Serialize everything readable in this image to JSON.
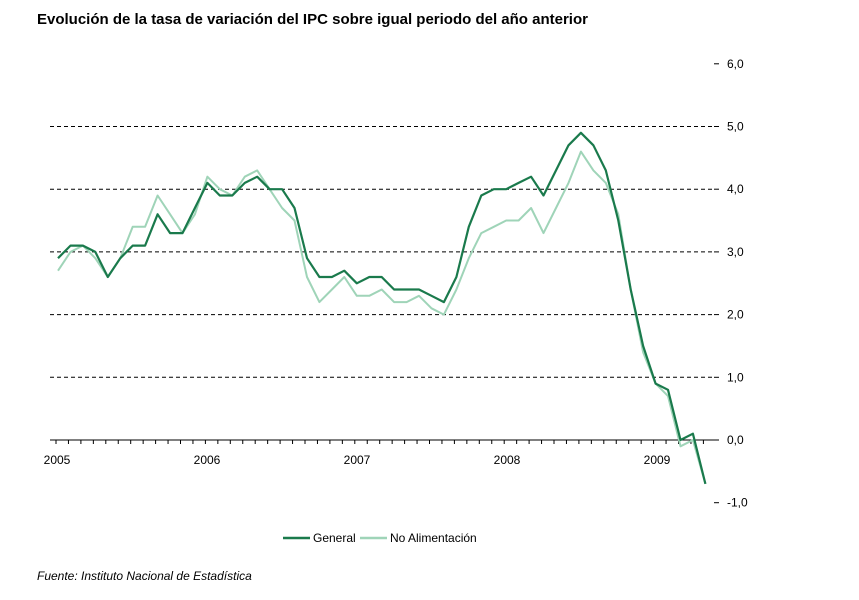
{
  "title": "Evolución de la tasa de variación del IPC sobre igual  periodo del año anterior",
  "source": "Fuente: Instituto Nacional de Estadística",
  "colors": {
    "general": "#1a7a4c",
    "no_alimentacion": "#9fd4b8",
    "grid": "#000000"
  },
  "chart_data": {
    "type": "line",
    "title": "Evolución de la tasa de variación del IPC sobre igual  periodo del año anterior",
    "xlabel": "",
    "ylabel": "",
    "ylim": [
      -1.0,
      6.0
    ],
    "y_ticks": [
      "-1,0",
      "0,0",
      "1,0",
      "2,0",
      "3,0",
      "4,0",
      "5,0",
      "6,0"
    ],
    "y_tick_values": [
      -1,
      0,
      1,
      2,
      3,
      4,
      5,
      6
    ],
    "x_ticks": [
      "2005",
      "2006",
      "2007",
      "2008",
      "2009"
    ],
    "grid": "horizontal dashed at 1,0 2,0 3,0 4,0 5,0",
    "legend_position": "bottom-center",
    "x": [
      "2005-01",
      "2005-02",
      "2005-03",
      "2005-04",
      "2005-05",
      "2005-06",
      "2005-07",
      "2005-08",
      "2005-09",
      "2005-10",
      "2005-11",
      "2005-12",
      "2006-01",
      "2006-02",
      "2006-03",
      "2006-04",
      "2006-05",
      "2006-06",
      "2006-07",
      "2006-08",
      "2006-09",
      "2006-10",
      "2006-11",
      "2006-12",
      "2007-01",
      "2007-02",
      "2007-03",
      "2007-04",
      "2007-05",
      "2007-06",
      "2007-07",
      "2007-08",
      "2007-09",
      "2007-10",
      "2007-11",
      "2007-12",
      "2008-01",
      "2008-02",
      "2008-03",
      "2008-04",
      "2008-05",
      "2008-06",
      "2008-07",
      "2008-08",
      "2008-09",
      "2008-10",
      "2008-11",
      "2008-12",
      "2009-01",
      "2009-02",
      "2009-03",
      "2009-04",
      "2009-05"
    ],
    "series": [
      {
        "name": "General",
        "values": [
          2.9,
          3.1,
          3.1,
          3.0,
          2.6,
          2.9,
          3.1,
          3.1,
          3.6,
          3.3,
          3.3,
          3.7,
          4.1,
          3.9,
          3.9,
          4.1,
          4.2,
          4.0,
          4.0,
          3.7,
          2.9,
          2.6,
          2.6,
          2.7,
          2.5,
          2.6,
          2.6,
          2.4,
          2.4,
          2.4,
          2.3,
          2.2,
          2.6,
          3.4,
          3.9,
          4.0,
          4.0,
          4.1,
          4.2,
          3.9,
          4.3,
          4.7,
          4.9,
          4.7,
          4.3,
          3.5,
          2.4,
          1.5,
          0.9,
          0.8,
          0.0,
          0.1,
          -0.7
        ]
      },
      {
        "name": "No Alimentación",
        "values": [
          2.7,
          3.0,
          3.1,
          2.9,
          2.6,
          2.9,
          3.4,
          3.4,
          3.9,
          3.6,
          3.3,
          3.6,
          4.2,
          4.0,
          3.9,
          4.2,
          4.3,
          4.0,
          3.7,
          3.5,
          2.6,
          2.2,
          2.4,
          2.6,
          2.3,
          2.3,
          2.4,
          2.2,
          2.2,
          2.3,
          2.1,
          2.0,
          2.4,
          2.9,
          3.3,
          3.4,
          3.5,
          3.5,
          3.7,
          3.3,
          3.7,
          4.1,
          4.6,
          4.3,
          4.1,
          3.6,
          2.4,
          1.4,
          0.9,
          0.7,
          -0.1,
          0.0,
          -0.7
        ]
      }
    ]
  }
}
